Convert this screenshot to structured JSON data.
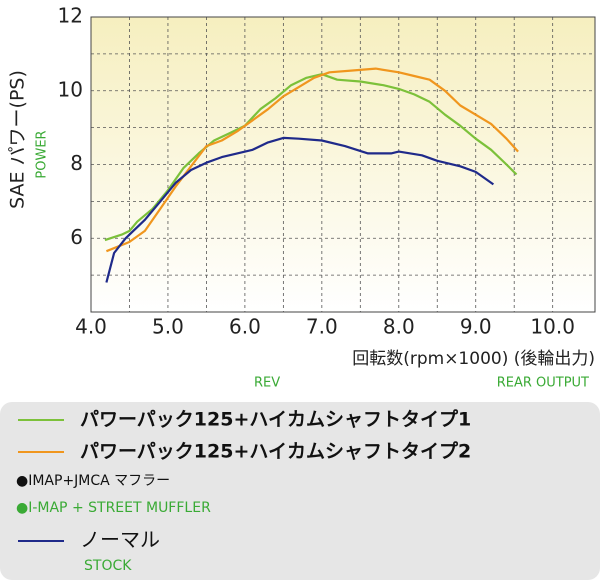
{
  "chart_data": {
    "type": "line",
    "y_label": "SAE パワー(PS)",
    "y_label_en": "POWER",
    "x_label": "回転数(rpm×1000) (後輪出力)",
    "x_label_en": "REV",
    "x_label_en2": "REAR OUTPUT",
    "xlim": [
      4.0,
      10.55
    ],
    "ylim": [
      4,
      12
    ],
    "xticks": [
      {
        "value": 4,
        "label": "4.0"
      },
      {
        "value": 5,
        "label": "5.0"
      },
      {
        "value": 6,
        "label": "6.0"
      },
      {
        "value": 7,
        "label": "7.0"
      },
      {
        "value": 8,
        "label": "8.0"
      },
      {
        "value": 9,
        "label": "9.0"
      },
      {
        "value": 10,
        "label": "10.0"
      }
    ],
    "yticks": [
      6,
      8,
      10,
      12
    ],
    "x_grid": [
      4.5,
      5,
      5.5,
      6,
      6.5,
      7,
      7.5,
      8,
      8.5,
      9,
      9.5,
      10
    ],
    "y_grid": [
      5,
      6,
      7,
      8,
      9,
      10,
      11
    ],
    "series": [
      {
        "name": "パワーパック125+ハイカムシャフトタイプ1",
        "color": "#7cc13a",
        "x": [
          4.18,
          4.4,
          4.5,
          4.6,
          4.8,
          5.0,
          5.2,
          5.4,
          5.6,
          5.8,
          6.0,
          6.2,
          6.4,
          6.6,
          6.8,
          7.0,
          7.2,
          7.5,
          7.8,
          8.0,
          8.2,
          8.4,
          8.6,
          8.8,
          9.0,
          9.2,
          9.4,
          9.53
        ],
        "values": [
          5.95,
          6.1,
          6.2,
          6.45,
          6.8,
          7.3,
          7.9,
          8.3,
          8.65,
          8.85,
          9.05,
          9.5,
          9.8,
          10.15,
          10.35,
          10.45,
          10.3,
          10.25,
          10.15,
          10.05,
          9.9,
          9.7,
          9.35,
          9.05,
          8.7,
          8.4,
          8.0,
          7.73
        ]
      },
      {
        "name": "パワーパック125+ハイカムシャフトタイプ2",
        "color": "#f0961e",
        "x": [
          4.2,
          4.5,
          4.7,
          4.9,
          5.1,
          5.3,
          5.5,
          5.7,
          5.9,
          6.1,
          6.3,
          6.5,
          6.7,
          6.9,
          7.1,
          7.4,
          7.7,
          8.0,
          8.2,
          8.4,
          8.6,
          8.8,
          9.0,
          9.2,
          9.4,
          9.55
        ],
        "values": [
          5.65,
          5.9,
          6.2,
          6.8,
          7.4,
          7.95,
          8.5,
          8.65,
          8.9,
          9.2,
          9.5,
          9.85,
          10.1,
          10.35,
          10.5,
          10.55,
          10.6,
          10.5,
          10.4,
          10.3,
          10.0,
          9.6,
          9.35,
          9.1,
          8.7,
          8.35
        ]
      },
      {
        "name": "ノーマル",
        "name_en": "STOCK",
        "color": "#1f2a8a",
        "x": [
          4.2,
          4.3,
          4.45,
          4.7,
          4.9,
          5.1,
          5.3,
          5.5,
          5.7,
          5.9,
          6.1,
          6.3,
          6.5,
          6.7,
          7.0,
          7.3,
          7.6,
          7.9,
          8.0,
          8.3,
          8.5,
          8.8,
          9.0,
          9.23
        ],
        "values": [
          4.8,
          5.6,
          6.0,
          6.5,
          7.0,
          7.5,
          7.85,
          8.05,
          8.2,
          8.3,
          8.4,
          8.6,
          8.72,
          8.7,
          8.65,
          8.5,
          8.3,
          8.3,
          8.35,
          8.25,
          8.1,
          7.95,
          7.8,
          7.46
        ]
      }
    ],
    "legend_notes": [
      {
        "text": "●IMAP+JMCA マフラー",
        "color": "#111111"
      },
      {
        "text": "●I-MAP + STREET MUFFLER",
        "color": "#3aaa35"
      }
    ]
  }
}
